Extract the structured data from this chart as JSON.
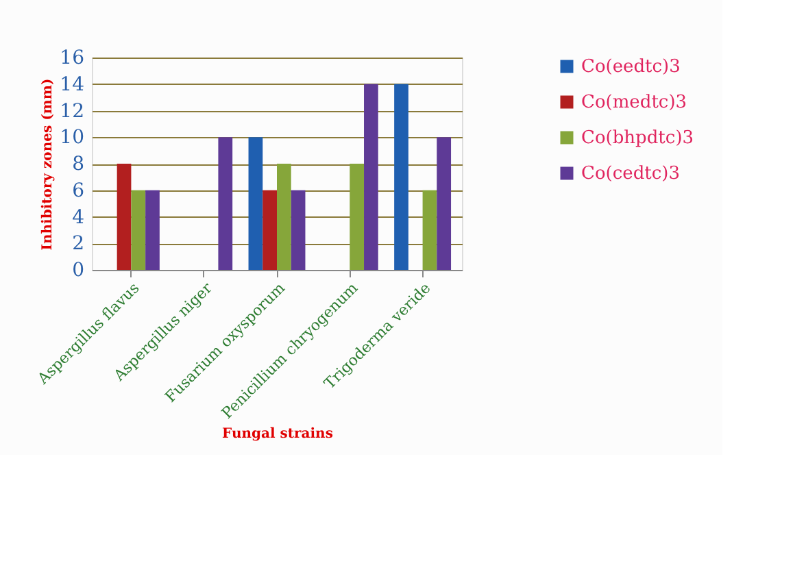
{
  "chart_data": {
    "type": "bar",
    "xlabel": "Fungal strains",
    "ylabel": "Inhibitory zones (mm)",
    "categories": [
      "Aspergillus flavus",
      "Aspergillus niger",
      "Fusarium oxysporum",
      "Penicillium chryogenum",
      "Trigoderma veride"
    ],
    "series": [
      {
        "name": "Co(eedtc)3",
        "color": "#1f5fb0",
        "values": [
          null,
          null,
          10,
          null,
          14
        ]
      },
      {
        "name": "Co(medtc)3",
        "color": "#b21f1f",
        "values": [
          8,
          null,
          6,
          null,
          null
        ]
      },
      {
        "name": "Co(bhpdtc)3",
        "color": "#86a63a",
        "values": [
          6,
          null,
          8,
          8,
          6
        ]
      },
      {
        "name": "Co(cedtc)3",
        "color": "#5e3a96",
        "values": [
          6,
          10,
          6,
          14,
          10
        ]
      }
    ],
    "ylim": [
      0,
      16
    ],
    "yticks": [
      0,
      2,
      4,
      6,
      8,
      10,
      12,
      14,
      16
    ],
    "grid": "y",
    "legend": "right"
  }
}
